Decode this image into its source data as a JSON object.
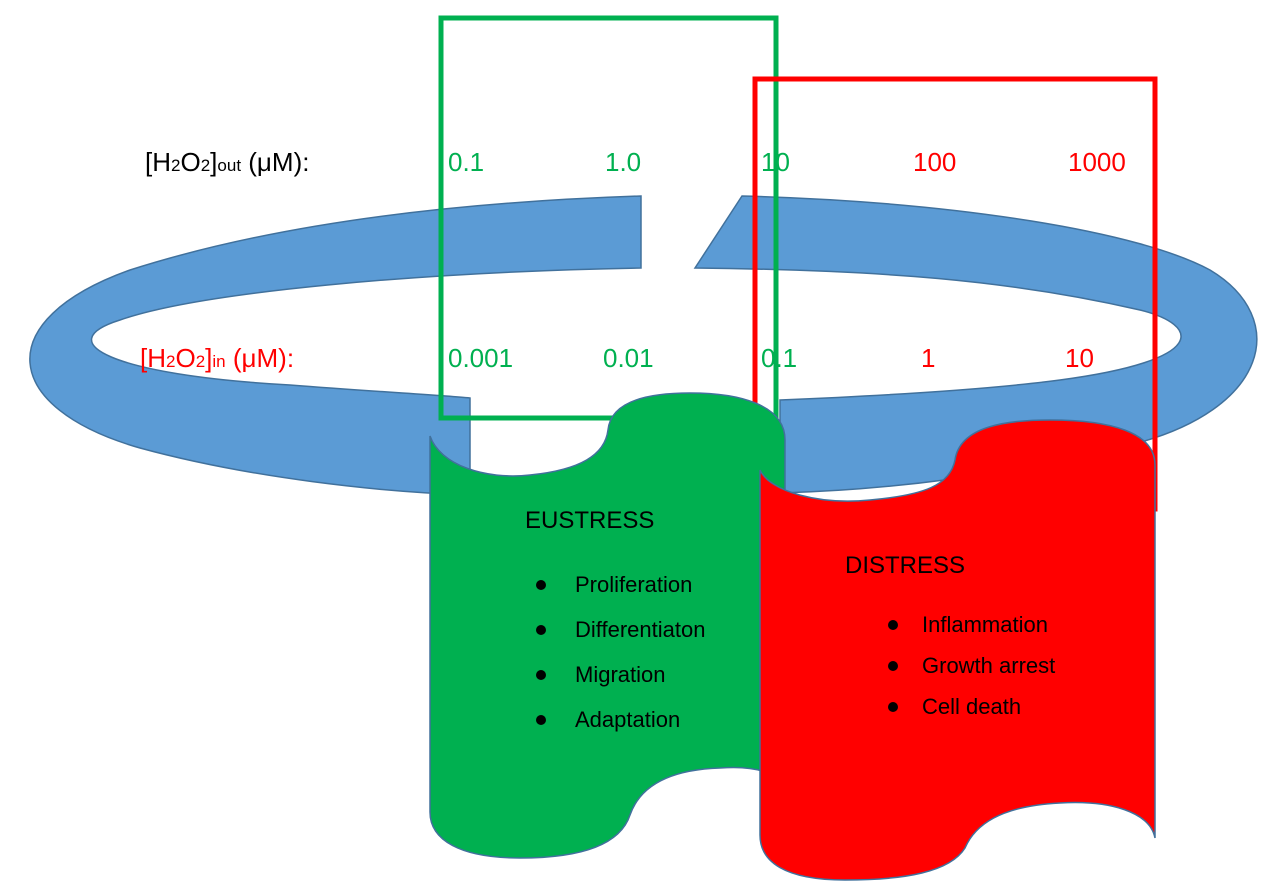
{
  "colors": {
    "green": "#00B050",
    "red": "#FF0000",
    "ring": "#5B9BD5",
    "ring_edge": "#41719C",
    "text": "#000000"
  },
  "rows": {
    "out": {
      "label_prefix": "[H",
      "label_sub1": "2",
      "label_mid": "O",
      "label_sub2": "2",
      "label_close": "]",
      "label_sub3": "out",
      "label_unit": " (μM):",
      "values": [
        "0.1",
        "1.0",
        "10",
        "100",
        "1000"
      ]
    },
    "in": {
      "label_prefix": "[H",
      "label_sub1": "2",
      "label_mid": "O",
      "label_sub2": "2",
      "label_close": "]",
      "label_sub3": "in",
      "label_unit": " (μM):",
      "values": [
        "0.001",
        "0.01",
        "0.1",
        "1",
        "10"
      ]
    }
  },
  "eustress": {
    "title": "EUSTRESS",
    "items": [
      "Proliferation",
      "Differentiaton",
      "Migration",
      "Adaptation"
    ]
  },
  "distress": {
    "title": "DISTRESS",
    "items": [
      "Inflammation",
      "Growth arrest",
      "Cell death"
    ]
  }
}
